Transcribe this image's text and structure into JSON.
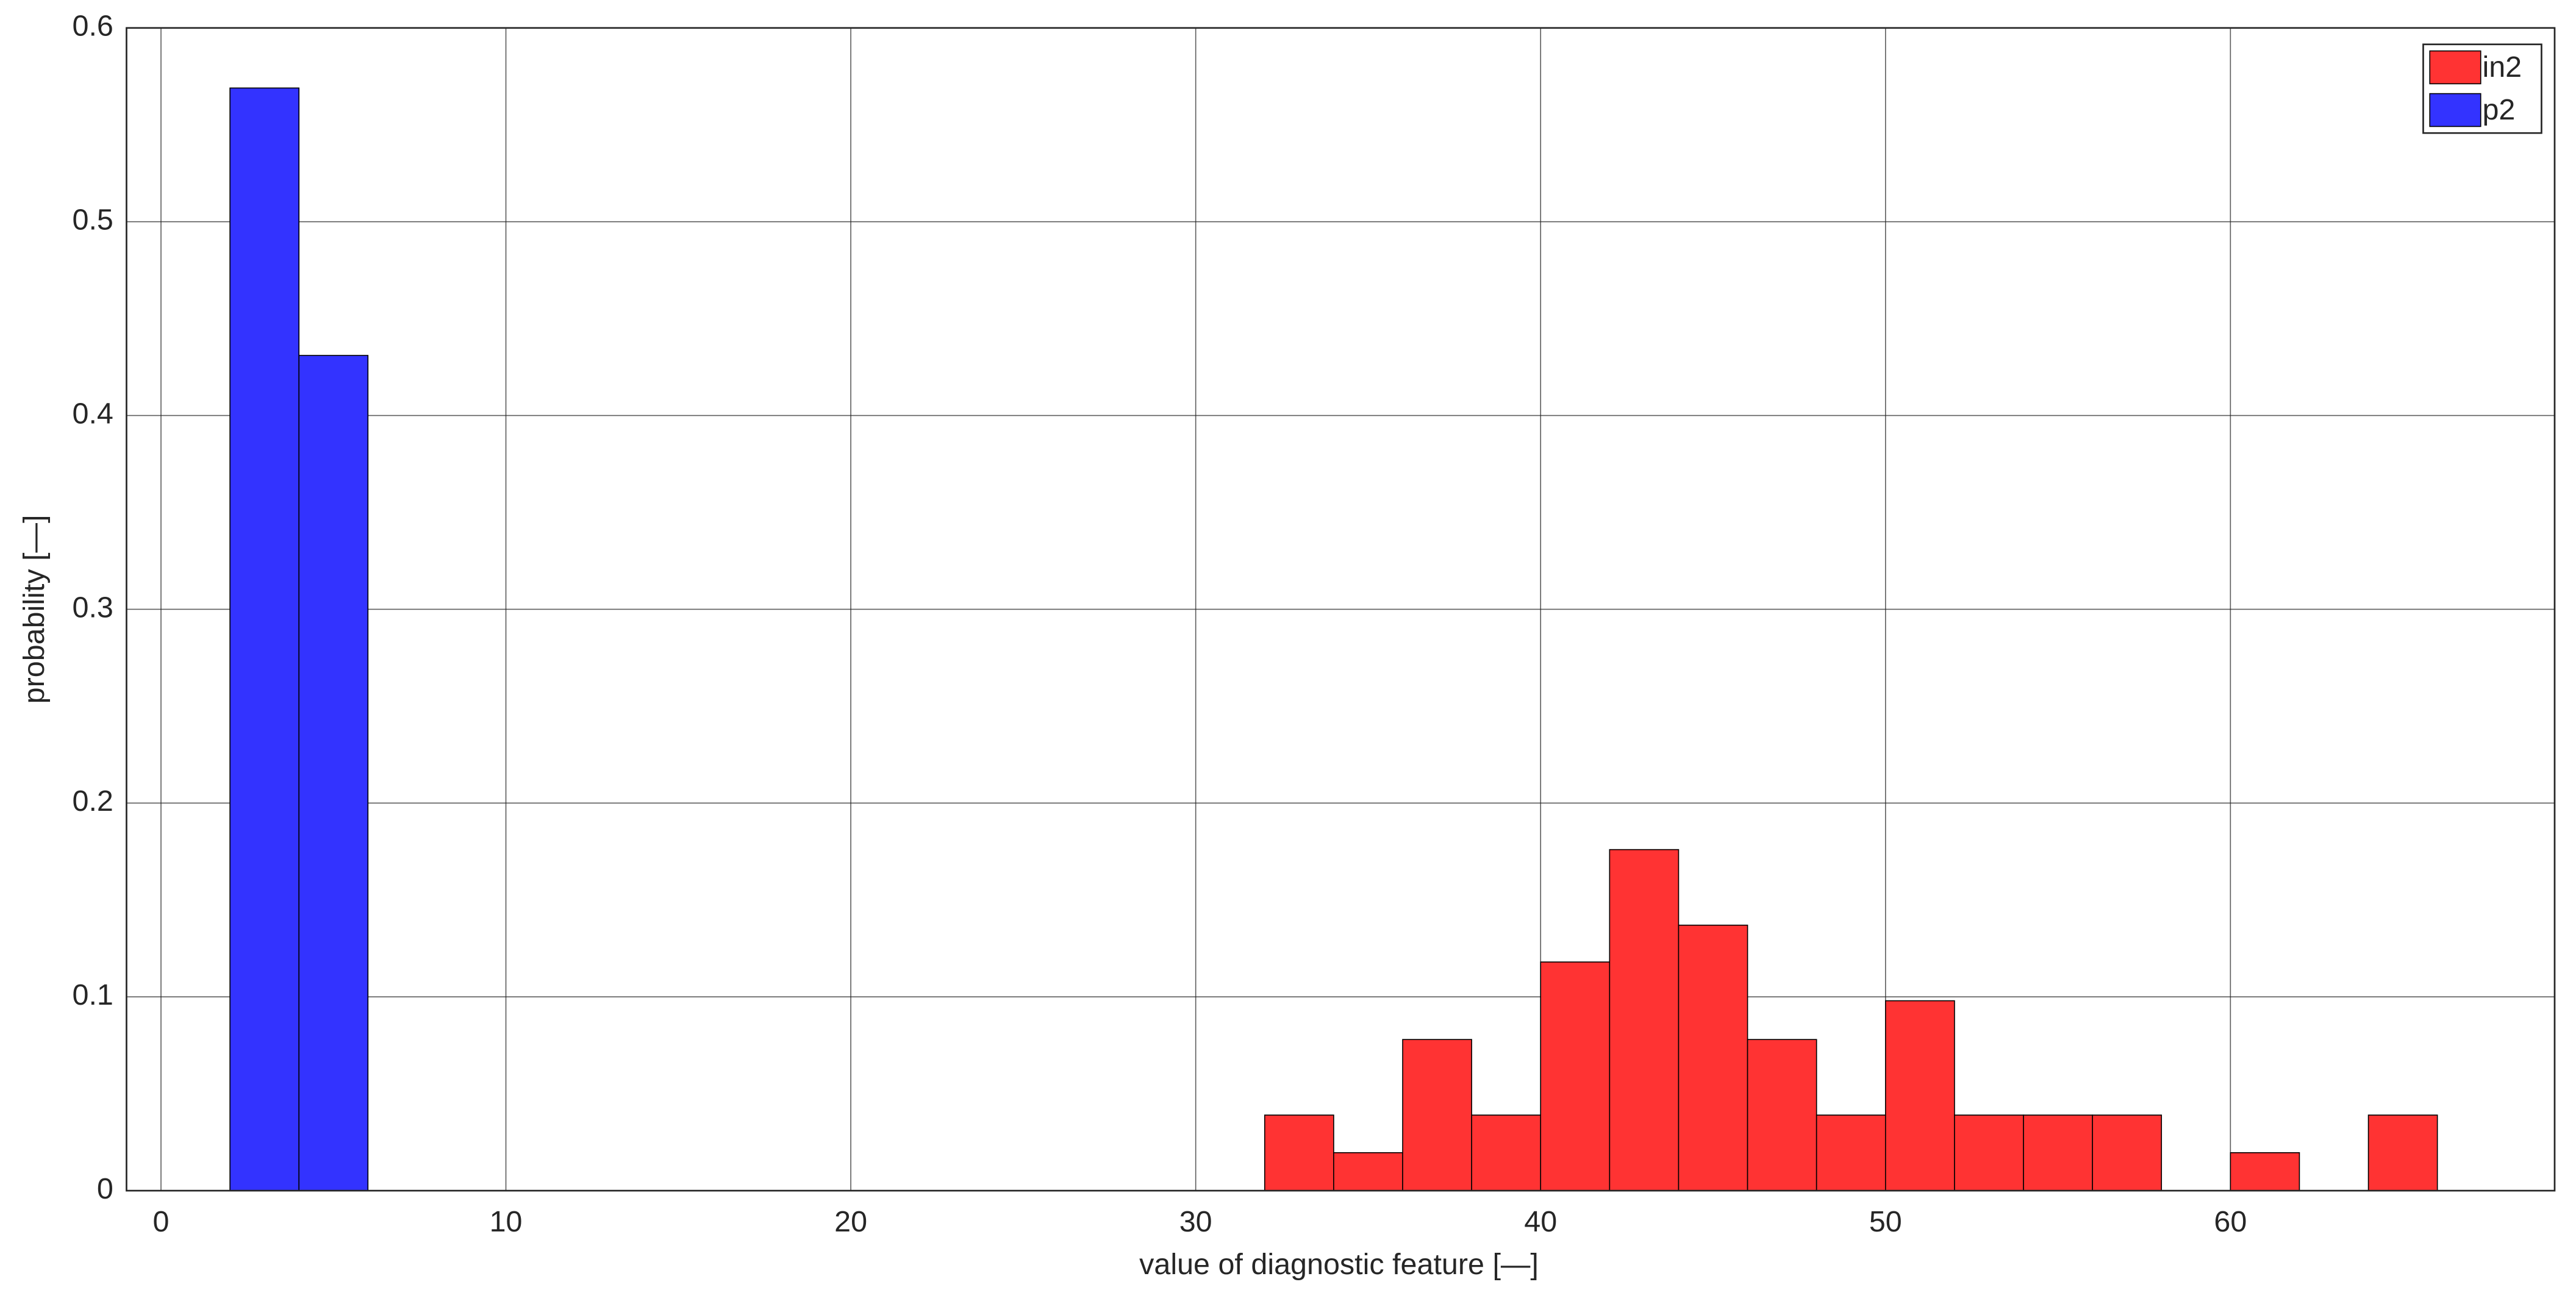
{
  "chart_data": {
    "type": "histogram",
    "xlabel": "value of diagnostic feature [—]",
    "ylabel": "probability [—]",
    "series": [
      {
        "name": "in2",
        "color": "#ff3333",
        "bins": [
          32,
          34,
          36,
          38,
          40,
          42,
          44,
          46,
          48,
          50,
          52,
          54,
          56,
          58,
          60,
          62,
          64,
          66
        ],
        "values": [
          0.039,
          0.0196,
          0.078,
          0.039,
          0.118,
          0.176,
          0.137,
          0.078,
          0.039,
          0.098,
          0.039,
          0.039,
          0.039,
          0,
          0.0196,
          0,
          0.039
        ]
      },
      {
        "name": "p2",
        "color": "#3333ff",
        "bins": [
          2,
          4,
          6
        ],
        "values": [
          0.569,
          0.431
        ]
      }
    ],
    "xlim": [
      -1,
      69.4
    ],
    "ylim": [
      0,
      0.6
    ],
    "xticks": [
      0,
      10,
      20,
      30,
      40,
      50,
      60
    ],
    "yticks": [
      0,
      0.1,
      0.2,
      0.3,
      0.4,
      0.5,
      0.6
    ],
    "grid": true,
    "legend": "upper right"
  }
}
